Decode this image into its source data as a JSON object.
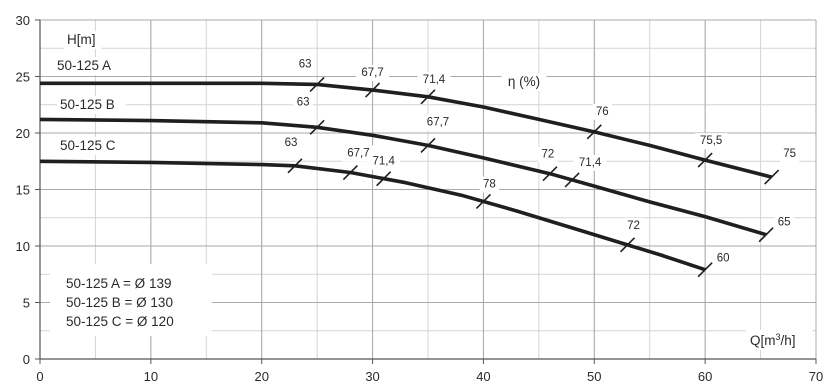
{
  "chart_data": {
    "type": "line",
    "xlabel": "Q[m³/h]",
    "ylabel": "H[m]",
    "xlim": [
      0,
      70
    ],
    "ylim": [
      0,
      30
    ],
    "x_ticks": [
      0,
      10,
      20,
      30,
      40,
      50,
      60,
      70
    ],
    "y_ticks": [
      0,
      5,
      10,
      15,
      20,
      25,
      30
    ],
    "x_minor_step": 5,
    "y_minor_step": 2.5,
    "grid": true,
    "efficiency_label": "η (%)",
    "series": [
      {
        "name": "50-125 A",
        "points": [
          [
            0,
            24.4
          ],
          [
            10,
            24.4
          ],
          [
            20,
            24.4
          ],
          [
            25,
            24.3
          ],
          [
            30,
            23.8
          ],
          [
            35,
            23.2
          ],
          [
            40,
            22.3
          ],
          [
            45,
            21.2
          ],
          [
            50,
            20.1
          ],
          [
            55,
            18.9
          ],
          [
            60,
            17.6
          ],
          [
            66,
            16.1
          ]
        ],
        "efficiency_marks": [
          {
            "x": 25,
            "label": "63"
          },
          {
            "x": 30,
            "label": "67,7"
          },
          {
            "x": 35,
            "label": "71,4"
          },
          {
            "x": 50,
            "label": "76"
          },
          {
            "x": 60,
            "label": "75,5"
          },
          {
            "x": 66,
            "label": "75"
          }
        ]
      },
      {
        "name": "50-125 B",
        "points": [
          [
            0,
            21.2
          ],
          [
            10,
            21.1
          ],
          [
            20,
            20.9
          ],
          [
            25,
            20.5
          ],
          [
            30,
            19.8
          ],
          [
            35,
            18.9
          ],
          [
            40,
            17.8
          ],
          [
            46,
            16.4
          ],
          [
            50,
            15.3
          ],
          [
            55,
            13.9
          ],
          [
            60,
            12.6
          ],
          [
            65.5,
            11.0
          ]
        ],
        "efficiency_marks": [
          {
            "x": 25,
            "label": "63"
          },
          {
            "x": 35,
            "label": "67,7"
          },
          {
            "x": 46,
            "label": "72"
          },
          {
            "x": 48,
            "label": "71,4"
          },
          {
            "x": 65.5,
            "label": "65"
          }
        ]
      },
      {
        "name": "50-125 C",
        "points": [
          [
            0,
            17.5
          ],
          [
            10,
            17.4
          ],
          [
            20,
            17.2
          ],
          [
            23,
            17.1
          ],
          [
            28,
            16.5
          ],
          [
            33,
            15.6
          ],
          [
            38,
            14.5
          ],
          [
            43,
            13.1
          ],
          [
            48,
            11.6
          ],
          [
            53,
            10.1
          ],
          [
            56,
            9.2
          ],
          [
            60,
            7.9
          ]
        ],
        "efficiency_marks": [
          {
            "x": 23,
            "label": "63"
          },
          {
            "x": 28,
            "label": "67,7"
          },
          {
            "x": 31,
            "label": "71,4"
          },
          {
            "x": 40,
            "label": "78"
          },
          {
            "x": 53,
            "label": "72"
          },
          {
            "x": 60,
            "label": "60"
          }
        ]
      }
    ],
    "legend_lines": [
      "50-125 A = Ø 139",
      "50-125 B = Ø 130",
      "50-125 C = Ø 120"
    ]
  }
}
